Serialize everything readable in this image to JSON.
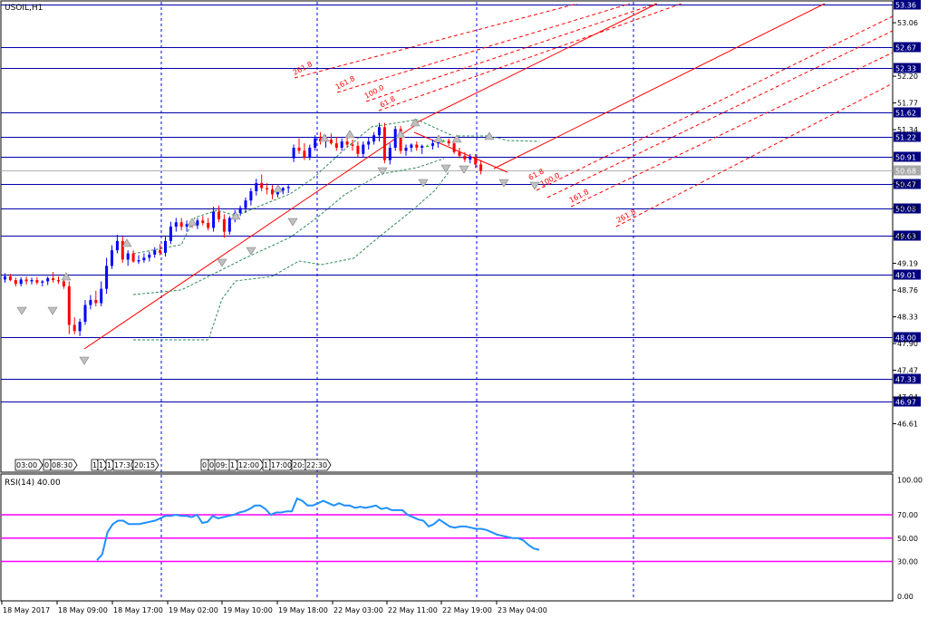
{
  "chart_title": "USOIL,H1",
  "rsi_title": "RSI(14) 40.00",
  "colors": {
    "up_candle": "#0000ff",
    "down_candle": "#ff0000",
    "doji": "#00cc00",
    "level_line": "#0000aa",
    "grid_v": "#0000ff",
    "trend_line": "#ff0000",
    "fan_line": "#ff0000",
    "envelope": "#2e8b57",
    "fractal": "#808080",
    "rsi_line": "#1e90ff",
    "rsi_level": "#ff00ff",
    "price_label_bg": "#000080",
    "current_label_bg": "#a9a9a9"
  },
  "chart_data": {
    "type": "candlestick",
    "symbol": "USOIL",
    "timeframe": "H1",
    "ylim": [
      46.3,
      53.36
    ],
    "y_ticks": [
      "53.06",
      "52.20",
      "51.77",
      "51.34",
      "50.47",
      "50.08",
      "49.63",
      "49.19",
      "48.76",
      "48.33",
      "47.90",
      "47.47",
      "47.04",
      "46.61"
    ],
    "horizontal_levels": [
      "53.36",
      "52.67",
      "52.33",
      "51.62",
      "51.22",
      "50.91",
      "50.47",
      "50.08",
      "49.63",
      "49.01",
      "48.00",
      "47.33",
      "46.97"
    ],
    "current_price": "50.68",
    "x_labels": [
      "18 May 2017",
      "18 May 09:00",
      "18 May 17:00",
      "19 May 02:00",
      "19 May 10:00",
      "19 May 18:00",
      "22 May 03:00",
      "22 May 11:00",
      "22 May 19:00",
      "23 May 04:00"
    ],
    "session_labels": [
      "03:00",
      "0",
      "08:30",
      "1",
      "1",
      "1",
      "17:30",
      "20:15",
      "0",
      "0",
      "09:",
      "1",
      "12:00",
      "1",
      "17:00",
      "20:",
      "22:30"
    ],
    "fib_labels": [
      "261.8",
      "161.8",
      "100.0",
      "61.8",
      "61.8",
      "100.0",
      "161.8",
      "261.8"
    ],
    "candles": [
      [
        48.93,
        49.03,
        48.88,
        48.98
      ],
      [
        48.98,
        49.02,
        48.9,
        48.92
      ],
      [
        48.92,
        48.96,
        48.82,
        48.86
      ],
      [
        48.86,
        48.97,
        48.82,
        48.93
      ],
      [
        48.93,
        48.98,
        48.85,
        48.9
      ],
      [
        48.9,
        48.96,
        48.85,
        48.92
      ],
      [
        48.92,
        48.97,
        48.85,
        48.88
      ],
      [
        48.88,
        48.92,
        48.82,
        48.9
      ],
      [
        48.9,
        48.98,
        48.84,
        48.95
      ],
      [
        48.95,
        49.05,
        48.88,
        48.92
      ],
      [
        48.92,
        48.98,
        48.86,
        48.9
      ],
      [
        48.9,
        48.95,
        48.78,
        48.82
      ],
      [
        48.82,
        48.9,
        48.05,
        48.2
      ],
      [
        48.2,
        48.32,
        48.05,
        48.1
      ],
      [
        48.1,
        48.3,
        48.02,
        48.25
      ],
      [
        48.25,
        48.6,
        48.2,
        48.52
      ],
      [
        48.52,
        48.68,
        48.45,
        48.6
      ],
      [
        48.6,
        48.75,
        48.5,
        48.55
      ],
      [
        48.55,
        48.9,
        48.5,
        48.78
      ],
      [
        48.78,
        49.28,
        48.7,
        49.15
      ],
      [
        49.15,
        49.48,
        49.1,
        49.4
      ],
      [
        49.4,
        49.65,
        49.35,
        49.55
      ],
      [
        49.55,
        49.62,
        49.2,
        49.25
      ],
      [
        49.25,
        49.4,
        49.15,
        49.35
      ],
      [
        49.35,
        49.4,
        49.2,
        49.22
      ],
      [
        49.22,
        49.32,
        49.18,
        49.24
      ],
      [
        49.24,
        49.35,
        49.2,
        49.28
      ],
      [
        49.28,
        49.38,
        49.22,
        49.33
      ],
      [
        49.33,
        49.45,
        49.28,
        49.4
      ],
      [
        49.4,
        49.5,
        49.32,
        49.36
      ],
      [
        49.36,
        49.62,
        49.3,
        49.55
      ],
      [
        49.55,
        49.86,
        49.5,
        49.78
      ],
      [
        49.78,
        49.92,
        49.7,
        49.85
      ],
      [
        49.85,
        49.92,
        49.72,
        49.78
      ],
      [
        49.78,
        49.88,
        49.7,
        49.82
      ],
      [
        49.82,
        49.9,
        49.76,
        49.8
      ],
      [
        49.8,
        49.92,
        49.74,
        49.88
      ],
      [
        49.88,
        49.95,
        49.8,
        49.84
      ],
      [
        49.84,
        49.92,
        49.72,
        49.76
      ],
      [
        49.76,
        50.1,
        49.7,
        50.02
      ],
      [
        50.02,
        50.12,
        49.85,
        49.9
      ],
      [
        49.9,
        49.98,
        49.6,
        49.7
      ],
      [
        49.7,
        49.95,
        49.65,
        49.92
      ],
      [
        49.92,
        50.05,
        49.85,
        50.0
      ],
      [
        50.0,
        50.12,
        49.95,
        50.08
      ],
      [
        50.08,
        50.25,
        50.0,
        50.2
      ],
      [
        50.2,
        50.4,
        50.12,
        50.35
      ],
      [
        50.35,
        50.55,
        50.28,
        50.48
      ],
      [
        50.48,
        50.62,
        50.35,
        50.4
      ],
      [
        50.4,
        50.48,
        50.3,
        50.38
      ],
      [
        50.38,
        50.45,
        50.22,
        50.3
      ],
      [
        50.3,
        50.4,
        50.25,
        50.36
      ],
      [
        50.36,
        50.42,
        50.3,
        50.4
      ],
      [
        50.4,
        50.45,
        50.32,
        50.42
      ],
      [
        50.88,
        51.1,
        50.82,
        51.05
      ],
      [
        51.05,
        51.2,
        50.95,
        51.0
      ],
      [
        51.0,
        51.12,
        50.85,
        50.9
      ],
      [
        50.9,
        51.1,
        50.85,
        51.05
      ],
      [
        51.05,
        51.25,
        51.0,
        51.2
      ],
      [
        51.2,
        51.3,
        51.1,
        51.15
      ],
      [
        51.15,
        51.25,
        51.05,
        51.18
      ],
      [
        51.18,
        51.28,
        51.1,
        51.12
      ],
      [
        51.12,
        51.22,
        51.0,
        51.05
      ],
      [
        51.05,
        51.2,
        51.0,
        51.15
      ],
      [
        51.15,
        51.25,
        51.05,
        51.1
      ],
      [
        51.1,
        51.18,
        51.0,
        51.08
      ],
      [
        51.08,
        51.15,
        50.9,
        50.95
      ],
      [
        50.95,
        51.15,
        50.9,
        51.1
      ],
      [
        51.1,
        51.22,
        51.02,
        51.15
      ],
      [
        51.15,
        51.3,
        51.1,
        51.25
      ],
      [
        51.25,
        51.45,
        51.15,
        51.38
      ],
      [
        51.38,
        51.45,
        50.8,
        50.85
      ],
      [
        50.85,
        51.12,
        50.78,
        51.05
      ],
      [
        51.05,
        51.4,
        51.0,
        51.35
      ],
      [
        51.35,
        51.4,
        50.95,
        51.0
      ],
      [
        51.0,
        51.1,
        50.92,
        51.05
      ],
      [
        51.05,
        51.12,
        50.98,
        51.1
      ],
      [
        51.1,
        51.15,
        51.0,
        51.05
      ],
      [
        51.05,
        51.1,
        50.95,
        51.08
      ],
      [
        51.08,
        51.1,
        51.06,
        51.08
      ],
      [
        51.08,
        51.18,
        51.02,
        51.12
      ],
      [
        51.12,
        51.2,
        51.05,
        51.15
      ],
      [
        51.15,
        51.18,
        51.14,
        51.16
      ],
      [
        51.16,
        51.2,
        51.08,
        51.12
      ],
      [
        51.12,
        51.15,
        50.95,
        50.98
      ],
      [
        50.98,
        51.05,
        50.88,
        50.92
      ],
      [
        50.92,
        50.98,
        50.82,
        50.86
      ],
      [
        50.86,
        50.95,
        50.8,
        50.9
      ],
      [
        50.9,
        50.95,
        50.72,
        50.78
      ],
      [
        50.78,
        50.85,
        50.62,
        50.68
      ]
    ],
    "rsi": {
      "title": "RSI(14) 40.00",
      "ylim": [
        0,
        100
      ],
      "y_ticks": [
        "100.00",
        "70.00",
        "50.00",
        "30.00",
        "0.00"
      ],
      "levels": [
        70,
        50,
        30
      ],
      "values": [
        31,
        36,
        55,
        62,
        65,
        65,
        62,
        62,
        62,
        63,
        64,
        65,
        67,
        69,
        69,
        70,
        69,
        69,
        68,
        70,
        63,
        64,
        69,
        67,
        68,
        69,
        70,
        72,
        73,
        75,
        78,
        78,
        75,
        70,
        72,
        72,
        73,
        73,
        84,
        82,
        78,
        78,
        80,
        82,
        80,
        78,
        80,
        78,
        78,
        76,
        77,
        76,
        77,
        78,
        75,
        76,
        74,
        74,
        74,
        70,
        68,
        66,
        65,
        60,
        62,
        66,
        63,
        60,
        59,
        60,
        60,
        59,
        58,
        58,
        57,
        55,
        53,
        52,
        51,
        50,
        50,
        48,
        44,
        41,
        40
      ]
    },
    "grid": true
  }
}
